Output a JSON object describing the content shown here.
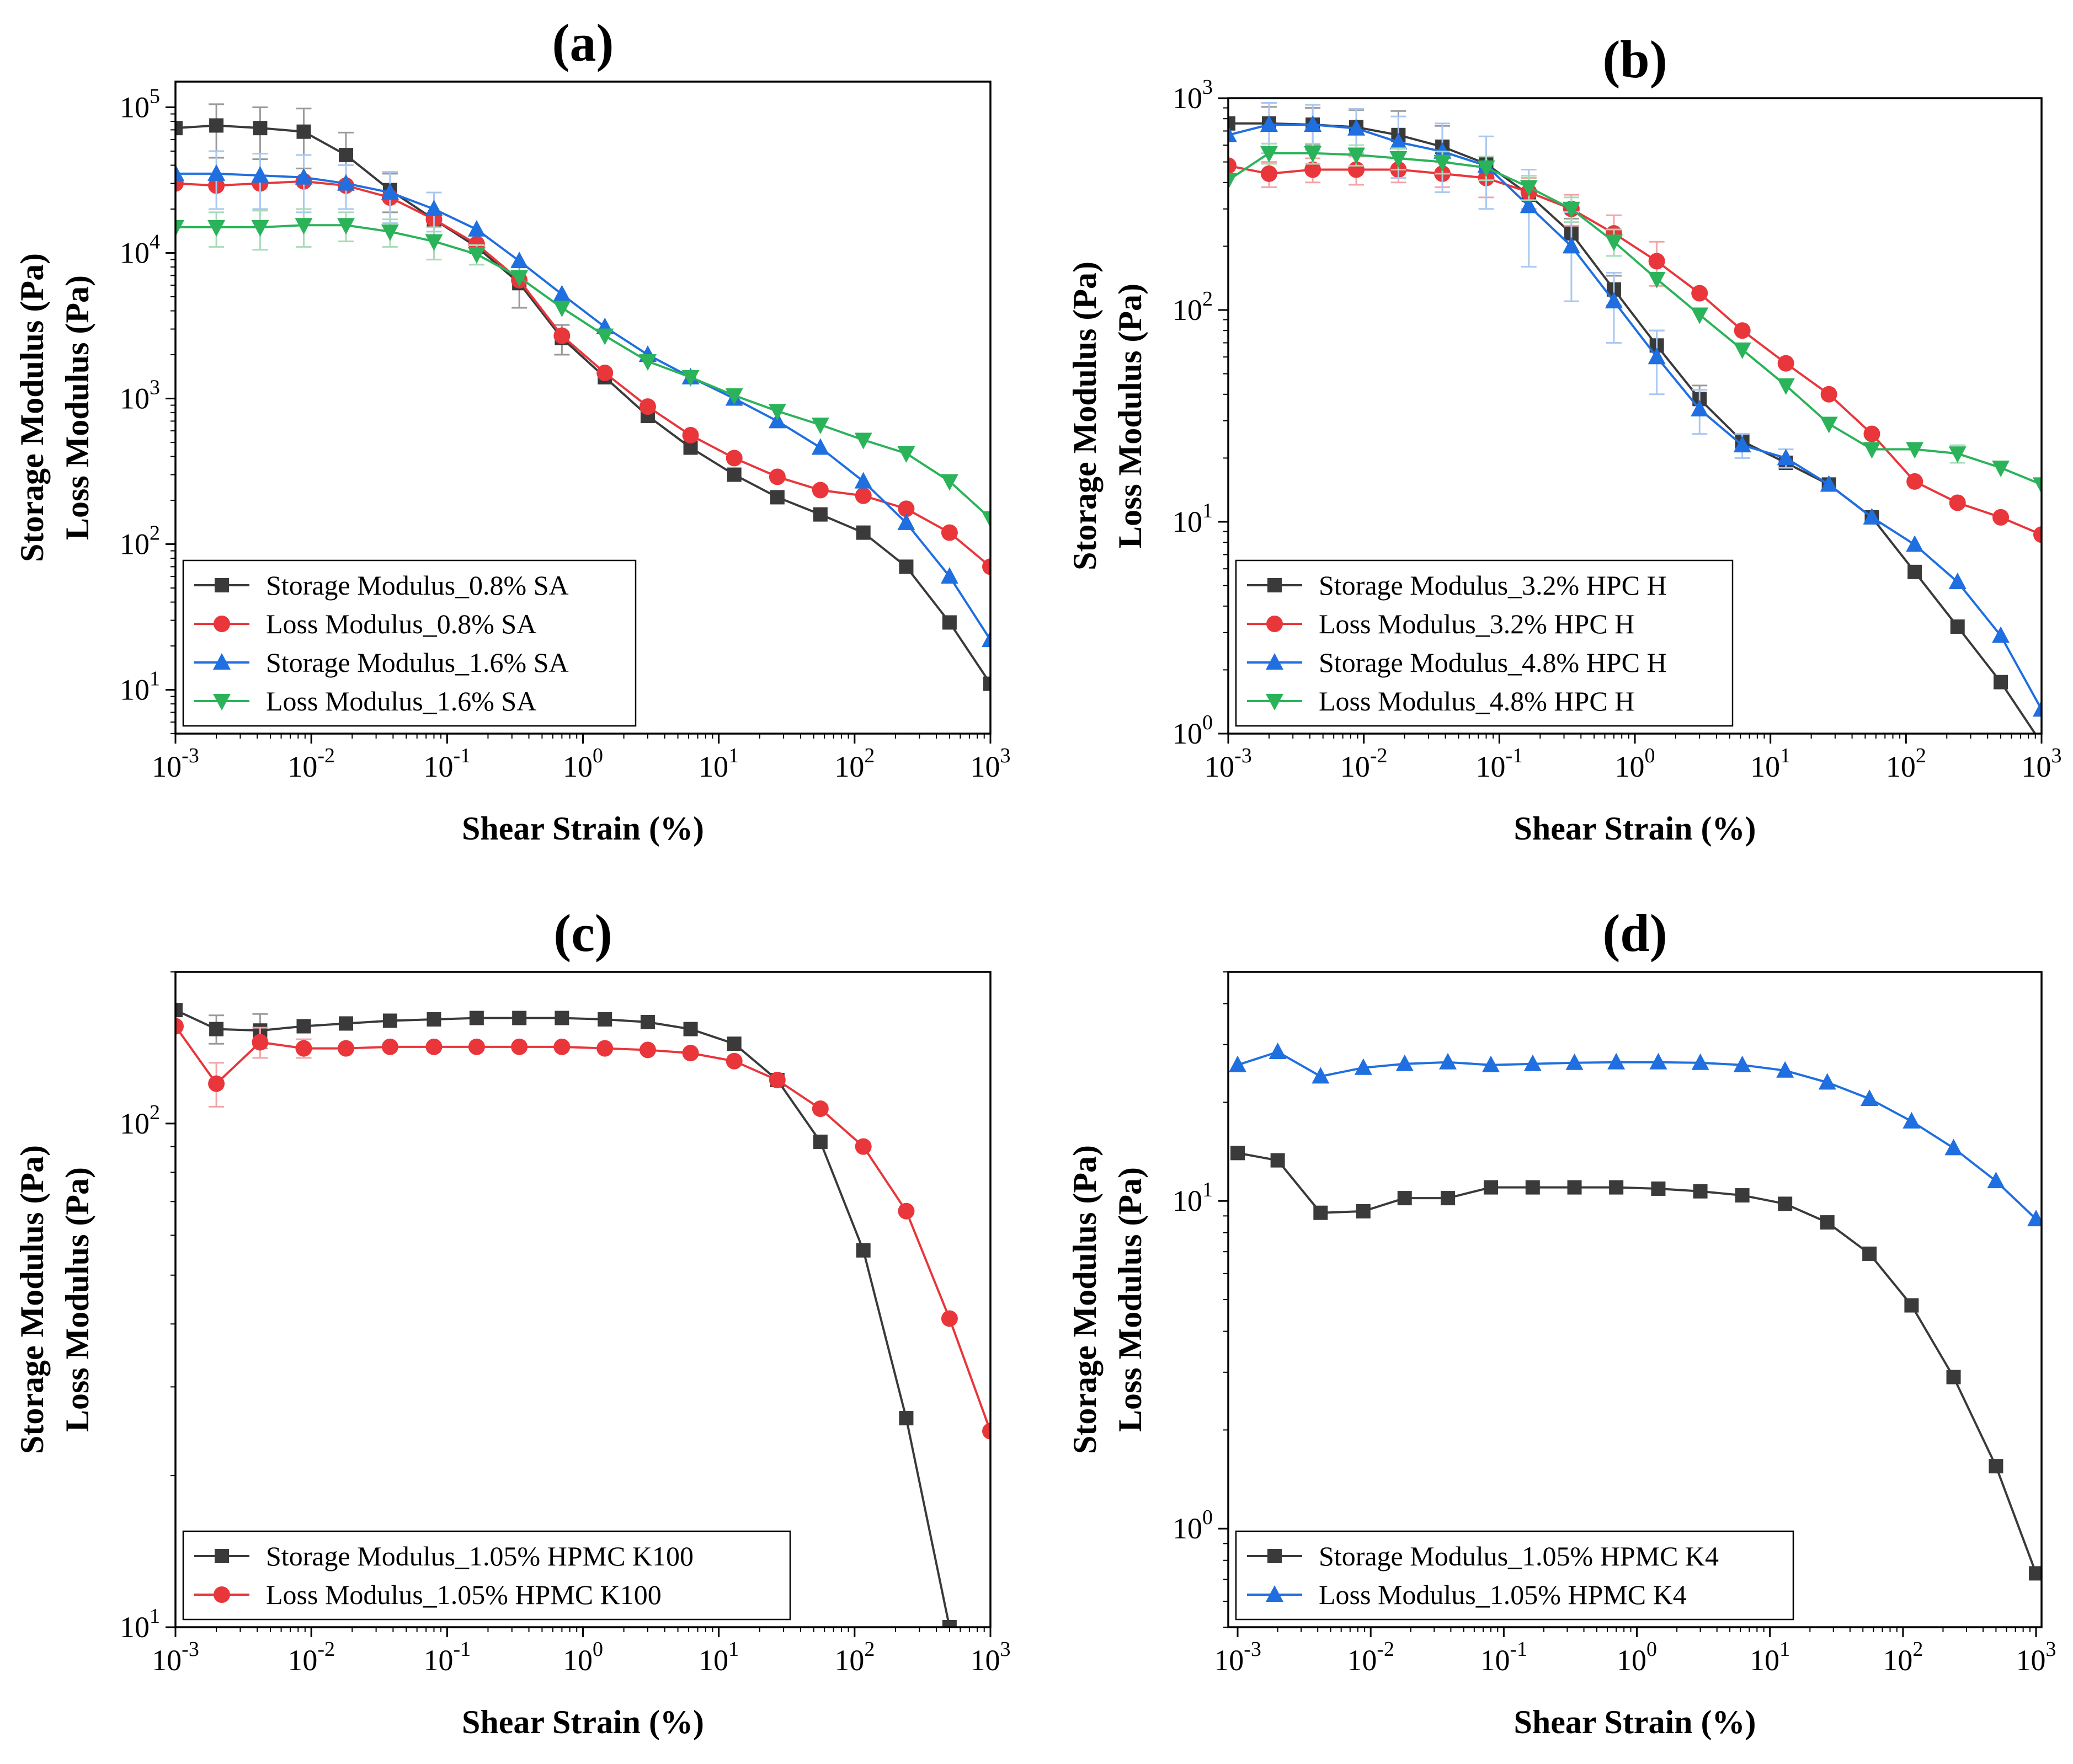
{
  "figure": {
    "aria_label": "Four-panel strain sweep rheology figure (a)–(d)"
  },
  "colors": {
    "black": "#3a3a3a",
    "red": "#e8363b",
    "blue": "#1f6fe0",
    "green": "#2bb35a",
    "err_black": "#9a9a9a",
    "err_red": "#f4a3a6",
    "err_blue": "#a9c7f1",
    "err_green": "#a6dcb8"
  },
  "chart_data": [
    {
      "id": "a",
      "type": "line",
      "title": "(a)",
      "xlabel": "Shear Strain (%)",
      "ylabel": [
        "Storage Modulus (Pa)",
        "Loss Modulus (Pa)"
      ],
      "xscale": "log",
      "yscale": "log",
      "xlim": [
        0.001,
        1000
      ],
      "ylim": [
        5,
        150000
      ],
      "xticks": [
        {
          "exp": "-3"
        },
        {
          "exp": "-2"
        },
        {
          "exp": "-1"
        },
        {
          "base": "10",
          "exp": "0",
          "label": "10⁰"
        },
        {
          "exp": "1"
        },
        {
          "exp": "2"
        },
        {
          "exp": "3"
        }
      ],
      "yticks": [
        {
          "value": 10,
          "exp": "1"
        },
        {
          "value": 100,
          "exp": "2"
        },
        {
          "value": 1000,
          "exp": "3"
        },
        {
          "value": 10000,
          "exp": "4"
        },
        {
          "value": 100000,
          "exp": "5"
        }
      ],
      "legend_position": "bottom-left",
      "x": [
        0.001,
        0.002,
        0.0042,
        0.0088,
        0.018,
        0.038,
        0.08,
        0.165,
        0.34,
        0.7,
        1.45,
        3,
        6.2,
        13,
        27,
        56,
        116,
        240,
        500,
        1000
      ],
      "series": [
        {
          "name": "Storage Modulus_0.8% SA",
          "color": "black",
          "marker": "square",
          "values": [
            72000,
            75000,
            72000,
            68000,
            47000,
            27000,
            17000,
            11000,
            6200,
            2600,
            1400,
            760,
            460,
            300,
            210,
            160,
            120,
            70,
            29,
            11
          ],
          "errors": [
            0,
            30000,
            28000,
            30000,
            20000,
            8000,
            0,
            0,
            2000,
            600,
            0,
            0,
            0,
            0,
            0,
            0,
            0,
            0,
            0,
            0
          ]
        },
        {
          "name": "Loss Modulus_0.8% SA",
          "color": "red",
          "marker": "circle",
          "values": [
            30000,
            29000,
            30000,
            31000,
            29000,
            24000,
            17000,
            11500,
            6500,
            2700,
            1500,
            880,
            560,
            390,
            290,
            235,
            215,
            175,
            120,
            70
          ],
          "errors": [
            0,
            0,
            0,
            0,
            0,
            0,
            0,
            0,
            0,
            0,
            0,
            0,
            0,
            0,
            0,
            0,
            0,
            0,
            0,
            0
          ]
        },
        {
          "name": "Storage Modulus_1.6% SA",
          "color": "blue",
          "marker": "triangle-up",
          "values": [
            35000,
            35000,
            34000,
            33000,
            30000,
            26000,
            20000,
            14500,
            8800,
            5200,
            3100,
            2000,
            1400,
            1000,
            700,
            460,
            270,
            140,
            60,
            22
          ],
          "errors": [
            0,
            15000,
            14000,
            14000,
            10000,
            10000,
            6000,
            0,
            0,
            0,
            0,
            0,
            0,
            0,
            0,
            0,
            0,
            0,
            0,
            0
          ]
        },
        {
          "name": "Loss Modulus_1.6% SA",
          "color": "green",
          "marker": "triangle-down",
          "values": [
            15000,
            15000,
            15000,
            15500,
            15500,
            14000,
            12000,
            9800,
            6800,
            4200,
            2700,
            1800,
            1400,
            1050,
            820,
            660,
            520,
            420,
            270,
            150
          ],
          "errors": [
            0,
            4000,
            4500,
            4500,
            3500,
            3000,
            3000,
            1500,
            0,
            0,
            0,
            0,
            0,
            0,
            0,
            0,
            0,
            0,
            0,
            0
          ]
        }
      ]
    },
    {
      "id": "b",
      "type": "line",
      "title": "(b)",
      "xlabel": "Shear Strain (%)",
      "ylabel": [
        "Storage Modulus (Pa)",
        "Loss Modulus (Pa)"
      ],
      "xscale": "log",
      "yscale": "log",
      "xlim": [
        0.001,
        1000
      ],
      "ylim": [
        1,
        1000
      ],
      "xticks": [
        {
          "exp": "-3"
        },
        {
          "exp": "-2"
        },
        {
          "exp": "-1"
        },
        {
          "base": "10",
          "exp": "0",
          "label": "10⁰"
        },
        {
          "exp": "1"
        },
        {
          "exp": "2"
        },
        {
          "exp": "3"
        }
      ],
      "yticks": [
        {
          "value": 1,
          "exp": "0"
        },
        {
          "value": 10,
          "exp": "1"
        },
        {
          "value": 100,
          "exp": "2"
        },
        {
          "value": 1000,
          "exp": "3"
        }
      ],
      "legend_position": "bottom-left",
      "x": [
        0.001,
        0.002,
        0.0042,
        0.0088,
        0.018,
        0.038,
        0.08,
        0.165,
        0.34,
        0.7,
        1.45,
        3,
        6.2,
        13,
        27,
        56,
        116,
        240,
        500,
        1000
      ],
      "series": [
        {
          "name": "Storage Modulus_3.2% HPC H",
          "color": "black",
          "marker": "square",
          "values": [
            760,
            760,
            750,
            730,
            670,
            590,
            490,
            350,
            230,
            125,
            68,
            38,
            24,
            19,
            15,
            10.5,
            5.8,
            3.2,
            1.75,
            0.9
          ],
          "errors": [
            0,
            150,
            150,
            150,
            200,
            150,
            0,
            0,
            40,
            20,
            12,
            6,
            0,
            0,
            0,
            0,
            0,
            0,
            0,
            0
          ]
        },
        {
          "name": "Loss Modulus_3.2% HPC H",
          "color": "red",
          "marker": "circle",
          "values": [
            480,
            440,
            460,
            460,
            460,
            440,
            420,
            360,
            300,
            230,
            170,
            120,
            80,
            56,
            40,
            26,
            15.5,
            12.3,
            10.5,
            8.7
          ],
          "errors": [
            0,
            60,
            60,
            70,
            60,
            60,
            80,
            60,
            50,
            50,
            40,
            0,
            0,
            0,
            0,
            0,
            0,
            0,
            0,
            0
          ]
        },
        {
          "name": "Storage Modulus_4.8% HPC H",
          "color": "blue",
          "marker": "triangle-up",
          "values": [
            670,
            750,
            750,
            720,
            620,
            560,
            480,
            310,
            200,
            110,
            60,
            34,
            23,
            20,
            15,
            10.5,
            7.8,
            5.2,
            2.9,
            1.3
          ],
          "errors": [
            0,
            200,
            180,
            170,
            200,
            200,
            180,
            150,
            90,
            40,
            20,
            8,
            3,
            2,
            0,
            0,
            0,
            0,
            0,
            0
          ]
        },
        {
          "name": "Loss Modulus_4.8% HPC H",
          "color": "green",
          "marker": "triangle-down",
          "values": [
            410,
            550,
            550,
            540,
            520,
            500,
            470,
            380,
            300,
            210,
            140,
            95,
            65,
            44,
            29,
            22,
            22,
            21,
            18,
            15
          ],
          "errors": [
            0,
            60,
            60,
            60,
            60,
            60,
            60,
            50,
            40,
            30,
            0,
            0,
            0,
            0,
            0,
            0,
            0,
            2,
            0,
            0
          ]
        }
      ]
    },
    {
      "id": "c",
      "type": "line",
      "title": "(c)",
      "xlabel": "Shear Strain (%)",
      "ylabel": [
        "Storage Modulus (Pa)",
        "Loss Modulus (Pa)"
      ],
      "xscale": "log",
      "yscale": "log",
      "xlim": [
        0.001,
        1000
      ],
      "ylim": [
        10,
        200
      ],
      "xticks": [
        {
          "exp": "-3"
        },
        {
          "exp": "-2"
        },
        {
          "exp": "-1"
        },
        {
          "base": "10",
          "exp": "0",
          "label": "10⁰"
        },
        {
          "exp": "1"
        },
        {
          "exp": "2"
        },
        {
          "exp": "3"
        }
      ],
      "yticks": [
        {
          "value": 10,
          "exp": "1"
        },
        {
          "value": 100,
          "exp": "2"
        }
      ],
      "legend_position": "bottom-left",
      "x": [
        0.001,
        0.002,
        0.0042,
        0.0088,
        0.018,
        0.038,
        0.08,
        0.165,
        0.34,
        0.7,
        1.45,
        3,
        6.2,
        13,
        27,
        56,
        116,
        240,
        500,
        1000
      ],
      "series": [
        {
          "name": "Storage Modulus_1.05% HPMC K100",
          "color": "black",
          "marker": "square",
          "values": [
            168,
            154,
            153,
            156,
            158,
            160,
            161,
            162,
            162,
            162,
            161,
            159,
            154,
            144,
            122,
            92,
            56,
            26,
            10,
            null
          ],
          "errors": [
            0,
            10,
            12,
            0,
            0,
            0,
            0,
            0,
            0,
            0,
            0,
            0,
            0,
            0,
            0,
            0,
            0,
            0,
            0,
            0
          ]
        },
        {
          "name": "Loss Modulus_1.05% HPMC K100",
          "color": "red",
          "marker": "circle",
          "values": [
            156,
            120,
            145,
            141,
            141,
            142,
            142,
            142,
            142,
            142,
            141,
            140,
            138,
            133,
            122,
            107,
            90,
            67,
            41,
            24.5
          ],
          "errors": [
            0,
            12,
            10,
            6,
            0,
            0,
            0,
            0,
            0,
            0,
            0,
            0,
            0,
            0,
            0,
            0,
            0,
            0,
            0,
            0
          ]
        }
      ]
    },
    {
      "id": "d",
      "type": "line",
      "title": "(d)",
      "xlabel": "Shear Strain (%)",
      "ylabel": [
        "Storage Modulus (Pa)",
        "Loss Modulus (Pa)"
      ],
      "xscale": "log",
      "yscale": "log",
      "xlim": [
        0.00085,
        1100
      ],
      "ylim": [
        0.5,
        50
      ],
      "xticks": [
        {
          "exp": "-3"
        },
        {
          "exp": "-2"
        },
        {
          "exp": "-1"
        },
        {
          "base": "10",
          "exp": "0",
          "label": "10⁰"
        },
        {
          "exp": "1"
        },
        {
          "exp": "2"
        },
        {
          "exp": "3"
        }
      ],
      "yticks": [
        {
          "value": 1,
          "exp": "0"
        },
        {
          "value": 10,
          "exp": "1"
        }
      ],
      "legend_position": "bottom-left",
      "x": [
        0.001,
        0.002,
        0.0042,
        0.0088,
        0.018,
        0.038,
        0.08,
        0.165,
        0.34,
        0.7,
        1.45,
        3,
        6.2,
        13,
        27,
        56,
        116,
        240,
        500,
        1000
      ],
      "series": [
        {
          "name": "Storage Modulus_1.05% HPMC K4",
          "color": "black",
          "marker": "square",
          "values": [
            14,
            13.3,
            9.2,
            9.3,
            10.2,
            10.2,
            11,
            11,
            11,
            11,
            10.9,
            10.7,
            10.4,
            9.8,
            8.6,
            6.9,
            4.8,
            2.9,
            1.55,
            0.73
          ],
          "errors": [
            0,
            0,
            0,
            0,
            0,
            0,
            0,
            0,
            0,
            0,
            0,
            0,
            0,
            0,
            0,
            0,
            0,
            0,
            0,
            0
          ]
        },
        {
          "name": "Loss Modulus_1.05% HPMC K4",
          "color": "blue",
          "marker": "triangle-up",
          "values": [
            26,
            28.5,
            24,
            25.5,
            26.2,
            26.5,
            26,
            26.2,
            26.4,
            26.5,
            26.5,
            26.4,
            26,
            25,
            23,
            20.5,
            17.5,
            14.5,
            11.5,
            8.8
          ],
          "errors": [
            0,
            0,
            0,
            0,
            0,
            0,
            0,
            0,
            0,
            0,
            0,
            0,
            0,
            0,
            0,
            0,
            0,
            0,
            0,
            0
          ]
        }
      ]
    }
  ]
}
